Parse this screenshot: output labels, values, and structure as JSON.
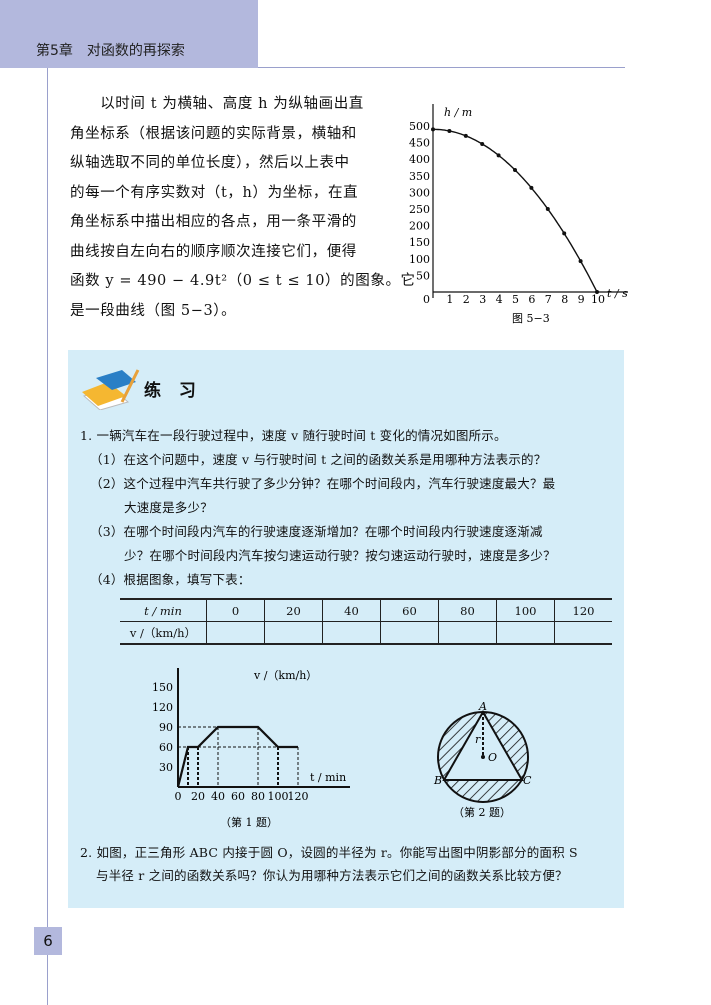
{
  "header": {
    "chapter": "第5章　对函数的再探索"
  },
  "page_number": "6",
  "paragraph": [
    "　　以时间 t 为横轴、高度 h 为纵轴画出直",
    "角坐标系（根据该问题的实际背景，横轴和",
    "纵轴选取不同的单位长度），然后以上表中",
    "的每一个有序实数对（t，h）为坐标，在直",
    "角坐标系中描出相应的各点，用一条平滑的",
    "曲线按自左向右的顺序顺次连接它们，便得",
    "函数 y = 490 − 4.9t²（0 ≤ t ≤ 10）的图象。它",
    "是一段曲线（图 5−3）。"
  ],
  "figure_5_3": {
    "caption": "图 5−3",
    "ylabel": "h / m",
    "xlabel": "t / s",
    "x_ticks": [
      "0",
      "1",
      "2",
      "3",
      "4",
      "5",
      "6",
      "7",
      "8",
      "9",
      "10"
    ],
    "y_ticks": [
      "50",
      "100",
      "150",
      "200",
      "250",
      "300",
      "350",
      "400",
      "450",
      "500"
    ],
    "t": [
      0,
      1,
      2,
      3,
      4,
      5,
      6,
      7,
      8,
      9,
      10
    ],
    "h": [
      490,
      485.1,
      470.4,
      445.9,
      411.6,
      367.5,
      313.6,
      249.9,
      176.4,
      93.1,
      0
    ]
  },
  "exercise": {
    "title": "练 习",
    "lines": [
      "1. 一辆汽车在一段行驶过程中，速度 v 随行驶时间 t 变化的情况如图所示。",
      "（1）在这个问题中，速度 v 与行驶时间 t 之间的函数关系是用哪种方法表示的？",
      "（2）这个过程中汽车共行驶了多少分钟？在哪个时间段内，汽车行驶速度最大？最",
      "大速度是多少？",
      "（3）在哪个时间段内汽车的行驶速度逐渐增加？在哪个时间段内行驶速度逐渐减",
      "少？在哪个时间段内汽车按匀速运动行驶？按匀速运动行驶时，速度是多少？",
      "（4）根据图象，填写下表："
    ],
    "table": {
      "row1_label": "t / min",
      "row2_label": "v /（km/h）",
      "columns": [
        "0",
        "20",
        "40",
        "60",
        "80",
        "100",
        "120"
      ]
    },
    "fig1": {
      "caption": "（第 1 题）",
      "ylabel": "v /（km/h）",
      "xlabel": "t / min",
      "x_ticks": [
        "0",
        "20",
        "40",
        "60",
        "80",
        "100",
        "120"
      ],
      "y_ticks": [
        "30",
        "60",
        "90",
        "120",
        "150"
      ],
      "t": [
        0,
        10,
        20,
        40,
        80,
        100,
        120
      ],
      "v": [
        0,
        60,
        60,
        90,
        90,
        60,
        60
      ]
    },
    "fig2": {
      "caption": "（第 2 题）",
      "labels": [
        "A",
        "B",
        "C",
        "O",
        "r"
      ]
    },
    "q2": [
      "2. 如图，正三角形 ABC 内接于圆 O，设圆的半径为 r。你能写出图中阴影部分的面积 S",
      "与半径 r 之间的函数关系吗？你认为用哪种方法表示它们之间的函数关系比较方便？"
    ]
  },
  "colors": {
    "header": "#b3b8dd",
    "exercise_bg": "#d5edf8"
  }
}
